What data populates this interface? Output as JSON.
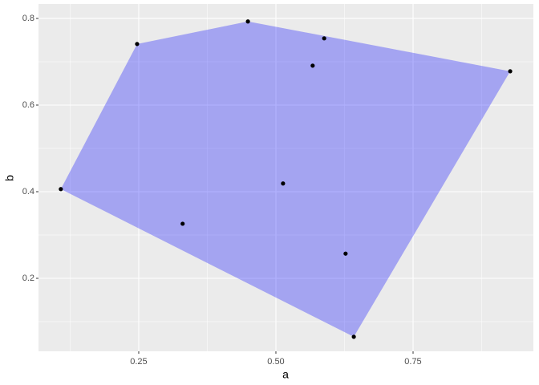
{
  "chart_data": {
    "type": "scatter",
    "x_label": "a",
    "y_label": "b",
    "xlim": [
      0.0673,
      0.9693
    ],
    "ylim": [
      0.0315,
      0.8333
    ],
    "xticks": [
      0.25,
      {
        "value": 0.5,
        "label": "0.50"
      },
      0.75
    ],
    "yticks": [
      0.2,
      0.4,
      0.6,
      0.8
    ],
    "x_minor_breaks": [
      0.125,
      0.375,
      0.625,
      0.875
    ],
    "y_minor_breaks": [
      0.1,
      0.3,
      0.5,
      0.7
    ],
    "grid": true,
    "point_color": "#000000",
    "x": [
      0.108,
      0.247,
      0.449,
      0.588,
      0.567,
      0.927,
      0.513,
      0.33,
      0.627,
      0.642
    ],
    "y": [
      0.406,
      0.741,
      0.793,
      0.754,
      0.691,
      0.678,
      0.419,
      0.326,
      0.257,
      0.065
    ],
    "polygon": {
      "color": "#0000ff",
      "opacity": 0.3,
      "x": [
        0.108,
        0.247,
        0.449,
        0.927,
        0.642
      ],
      "y": [
        0.406,
        0.741,
        0.793,
        0.678,
        0.065
      ]
    }
  }
}
